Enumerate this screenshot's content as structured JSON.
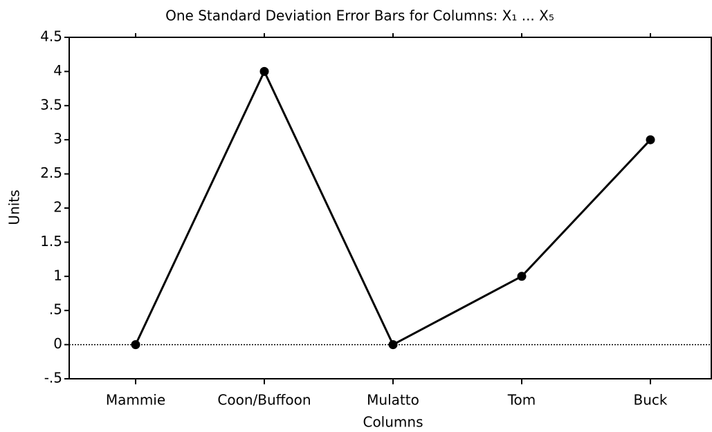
{
  "chart_data": {
    "type": "line",
    "title": "One Standard Deviation Error Bars for Columns: X₁ ... X₅",
    "x_label": "Columns",
    "y_label": "Units",
    "categories": [
      "Mammie",
      "Coon/Buffoon",
      "Mulatto",
      "Tom",
      "Buck"
    ],
    "values": [
      0,
      4,
      0,
      1,
      3
    ],
    "color": "#000000",
    "ylim": [
      -0.5,
      4.5
    ],
    "yticks": [
      {
        "value": -0.5,
        "label": "-.5"
      },
      0,
      {
        "value": 0.5,
        "label": ".5"
      },
      1,
      1.5,
      2,
      2.5,
      3,
      3.5,
      4,
      4.5
    ],
    "zero_line": true
  }
}
